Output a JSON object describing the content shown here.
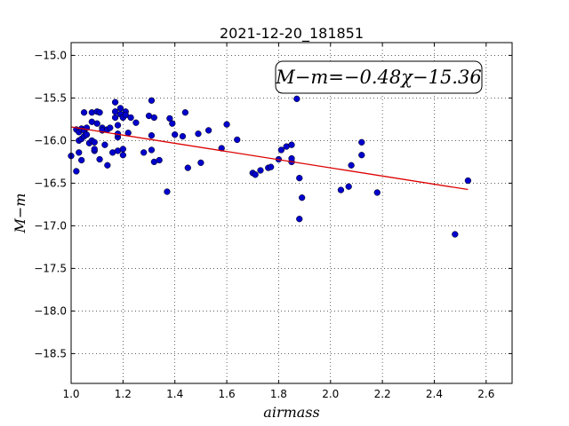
{
  "chart_data": {
    "type": "scatter",
    "title": "2021-12-20_181851",
    "xlabel": "airmass",
    "ylabel": "M−m",
    "annotation": "M−m=−0.48χ−15.36",
    "xlim": [
      1.0,
      2.7
    ],
    "ylim": [
      -18.85,
      -14.85
    ],
    "y_inverted": true,
    "grid": true,
    "xticks": [
      1.0,
      1.2,
      1.4,
      1.6,
      1.8,
      2.0,
      2.2,
      2.4,
      2.6
    ],
    "yticks": [
      -15.0,
      -15.5,
      -16.0,
      -16.5,
      -17.0,
      -17.5,
      -18.0,
      -18.5
    ],
    "point_color": "#0000cc",
    "fit_color": "#dd0000",
    "fit_line": {
      "slope": -0.48,
      "intercept": -15.36,
      "x_range": [
        1.0,
        2.53
      ]
    },
    "points": [
      {
        "x": 1.0,
        "y": -16.18
      },
      {
        "x": 1.02,
        "y": -16.36
      },
      {
        "x": 1.02,
        "y": -15.87
      },
      {
        "x": 1.03,
        "y": -16.0
      },
      {
        "x": 1.03,
        "y": -15.9
      },
      {
        "x": 1.03,
        "y": -16.14
      },
      {
        "x": 1.04,
        "y": -16.23
      },
      {
        "x": 1.04,
        "y": -15.98
      },
      {
        "x": 1.04,
        "y": -15.86
      },
      {
        "x": 1.05,
        "y": -15.67
      },
      {
        "x": 1.05,
        "y": -15.95
      },
      {
        "x": 1.05,
        "y": -15.88
      },
      {
        "x": 1.06,
        "y": -15.85
      },
      {
        "x": 1.06,
        "y": -15.93
      },
      {
        "x": 1.07,
        "y": -16.03
      },
      {
        "x": 1.08,
        "y": -16.0
      },
      {
        "x": 1.08,
        "y": -15.67
      },
      {
        "x": 1.08,
        "y": -15.78
      },
      {
        "x": 1.09,
        "y": -16.12
      },
      {
        "x": 1.09,
        "y": -16.1
      },
      {
        "x": 1.09,
        "y": -16.02
      },
      {
        "x": 1.1,
        "y": -15.66
      },
      {
        "x": 1.1,
        "y": -15.8
      },
      {
        "x": 1.11,
        "y": -15.67
      },
      {
        "x": 1.11,
        "y": -16.22
      },
      {
        "x": 1.12,
        "y": -15.85
      },
      {
        "x": 1.12,
        "y": -15.88
      },
      {
        "x": 1.13,
        "y": -16.05
      },
      {
        "x": 1.14,
        "y": -16.29
      },
      {
        "x": 1.14,
        "y": -15.87
      },
      {
        "x": 1.15,
        "y": -15.85
      },
      {
        "x": 1.16,
        "y": -16.14
      },
      {
        "x": 1.17,
        "y": -15.73
      },
      {
        "x": 1.17,
        "y": -15.66
      },
      {
        "x": 1.17,
        "y": -15.55
      },
      {
        "x": 1.18,
        "y": -15.96
      },
      {
        "x": 1.18,
        "y": -15.92
      },
      {
        "x": 1.18,
        "y": -16.12
      },
      {
        "x": 1.18,
        "y": -15.82
      },
      {
        "x": 1.19,
        "y": -15.69
      },
      {
        "x": 1.19,
        "y": -15.62
      },
      {
        "x": 1.2,
        "y": -16.17
      },
      {
        "x": 1.2,
        "y": -16.1
      },
      {
        "x": 1.2,
        "y": -15.73
      },
      {
        "x": 1.21,
        "y": -15.66
      },
      {
        "x": 1.21,
        "y": -15.7
      },
      {
        "x": 1.22,
        "y": -15.91
      },
      {
        "x": 1.23,
        "y": -15.73
      },
      {
        "x": 1.25,
        "y": -15.79
      },
      {
        "x": 1.28,
        "y": -16.14
      },
      {
        "x": 1.3,
        "y": -15.71
      },
      {
        "x": 1.31,
        "y": -15.53
      },
      {
        "x": 1.31,
        "y": -15.94
      },
      {
        "x": 1.31,
        "y": -16.11
      },
      {
        "x": 1.32,
        "y": -15.73
      },
      {
        "x": 1.32,
        "y": -16.25
      },
      {
        "x": 1.34,
        "y": -16.23
      },
      {
        "x": 1.37,
        "y": -16.6
      },
      {
        "x": 1.38,
        "y": -15.74
      },
      {
        "x": 1.39,
        "y": -15.8
      },
      {
        "x": 1.4,
        "y": -15.93
      },
      {
        "x": 1.43,
        "y": -15.95
      },
      {
        "x": 1.44,
        "y": -15.67
      },
      {
        "x": 1.45,
        "y": -16.32
      },
      {
        "x": 1.49,
        "y": -15.92
      },
      {
        "x": 1.5,
        "y": -16.26
      },
      {
        "x": 1.53,
        "y": -15.88
      },
      {
        "x": 1.58,
        "y": -16.09
      },
      {
        "x": 1.6,
        "y": -15.81
      },
      {
        "x": 1.64,
        "y": -15.99
      },
      {
        "x": 1.7,
        "y": -16.38
      },
      {
        "x": 1.71,
        "y": -16.4
      },
      {
        "x": 1.73,
        "y": -16.35
      },
      {
        "x": 1.76,
        "y": -16.32
      },
      {
        "x": 1.77,
        "y": -16.31
      },
      {
        "x": 1.8,
        "y": -16.22
      },
      {
        "x": 1.81,
        "y": -16.11
      },
      {
        "x": 1.83,
        "y": -16.07
      },
      {
        "x": 1.85,
        "y": -16.05
      },
      {
        "x": 1.85,
        "y": -16.25
      },
      {
        "x": 1.85,
        "y": -16.21
      },
      {
        "x": 1.87,
        "y": -15.51
      },
      {
        "x": 1.88,
        "y": -16.44
      },
      {
        "x": 1.88,
        "y": -16.92
      },
      {
        "x": 1.89,
        "y": -16.67
      },
      {
        "x": 2.04,
        "y": -16.58
      },
      {
        "x": 2.07,
        "y": -16.54
      },
      {
        "x": 2.08,
        "y": -16.29
      },
      {
        "x": 2.12,
        "y": -16.17
      },
      {
        "x": 2.12,
        "y": -16.02
      },
      {
        "x": 2.18,
        "y": -16.61
      },
      {
        "x": 2.48,
        "y": -17.1
      },
      {
        "x": 2.53,
        "y": -16.47
      }
    ]
  }
}
